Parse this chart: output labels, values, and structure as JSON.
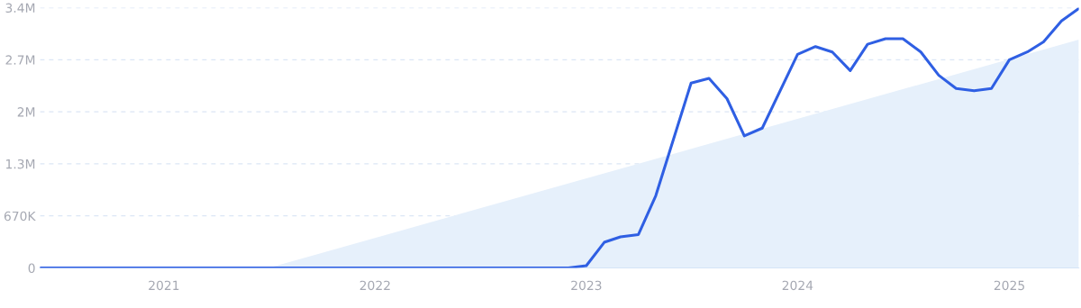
{
  "chart_data": {
    "type": "line",
    "xlim": [
      "2020-06",
      "2025-05"
    ],
    "xticks": [
      {
        "value": "2021-01",
        "label": "2021"
      },
      {
        "value": "2022-01",
        "label": "2022"
      },
      {
        "value": "2023-01",
        "label": "2023"
      },
      {
        "value": "2024-01",
        "label": "2024"
      },
      {
        "value": "2025-01",
        "label": "2025"
      }
    ],
    "ylim": [
      0,
      3350000
    ],
    "yticks": [
      0,
      {
        "value": 670000,
        "label": "670K"
      },
      {
        "value": 1340000,
        "label": "1.3M"
      },
      {
        "value": 2010000,
        "label": "2M"
      },
      {
        "value": 2680000,
        "label": "2.7M"
      },
      {
        "value": 3350000,
        "label": "3.4M"
      }
    ],
    "grid": "y",
    "legend": false,
    "marker": "none",
    "line_style": "solid",
    "series": [
      {
        "type": "area",
        "color": "#e6f0fb",
        "x": [
          "2021-07",
          "2025-05"
        ],
        "values": [
          0,
          2940000
        ]
      },
      {
        "color": "#2f5fe3",
        "x": [
          "2020-06",
          "2022-12",
          "2023-01",
          "2023-02",
          "2023-03",
          "2023-04",
          "2023-05",
          "2023-07",
          "2023-08",
          "2023-09",
          "2023-10",
          "2023-11",
          "2024-01",
          "2024-02",
          "2024-03",
          "2024-04",
          "2024-05",
          "2024-06",
          "2024-07",
          "2024-08",
          "2024-09",
          "2024-10",
          "2024-11",
          "2024-12",
          "2025-01",
          "2025-02",
          "2025-03",
          "2025-04",
          "2025-05"
        ],
        "values": [
          0,
          0,
          30000,
          330000,
          400000,
          430000,
          930000,
          2380000,
          2440000,
          2180000,
          1700000,
          1800000,
          2750000,
          2850000,
          2780000,
          2540000,
          2880000,
          2950000,
          2950000,
          2780000,
          2480000,
          2310000,
          2280000,
          2310000,
          2680000,
          2780000,
          2910000,
          3180000,
          3340000
        ]
      }
    ]
  }
}
